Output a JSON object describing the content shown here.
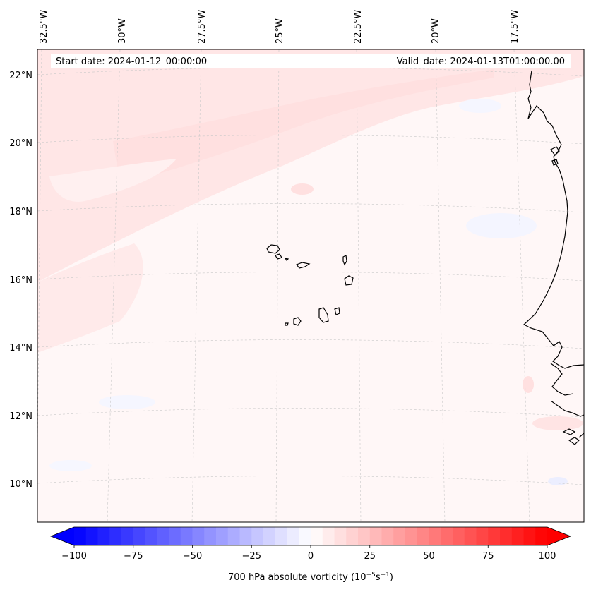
{
  "map": {
    "header": {
      "start_date": "Start date: 2024-01-12_00:00:00",
      "valid_date": "Valid_date: 2024-01-13T01:00:00.00"
    },
    "lon_labels": [
      "32.5°W",
      "30°W",
      "27.5°W",
      "25°W",
      "22.5°W",
      "20°W",
      "17.5°W"
    ],
    "lat_labels": [
      "22°N",
      "20°N",
      "18°N",
      "16°N",
      "14°N",
      "12°N",
      "10°N"
    ],
    "colorbar": {
      "label_prefix": "700 hPa absolute vorticity (10",
      "label_exp1": "−5",
      "label_mid": "s",
      "label_exp2": "−1",
      "label_suffix": ")",
      "ticks": [
        "−100",
        "−75",
        "−50",
        "−25",
        "0",
        "25",
        "50",
        "75",
        "100"
      ],
      "tick_values": [
        -100,
        -75,
        -50,
        -25,
        0,
        25,
        50,
        75,
        100
      ],
      "min": -100,
      "max": 100,
      "step": 5,
      "low_color": "#0000ff",
      "high_color": "#ff0000"
    },
    "colors": {
      "background_field": "#fff7f7",
      "positive_band": "#ffe5e5",
      "negative_patch": "#f3f5ff",
      "coast": "#000000",
      "gridline": "#c8c8c8"
    }
  }
}
